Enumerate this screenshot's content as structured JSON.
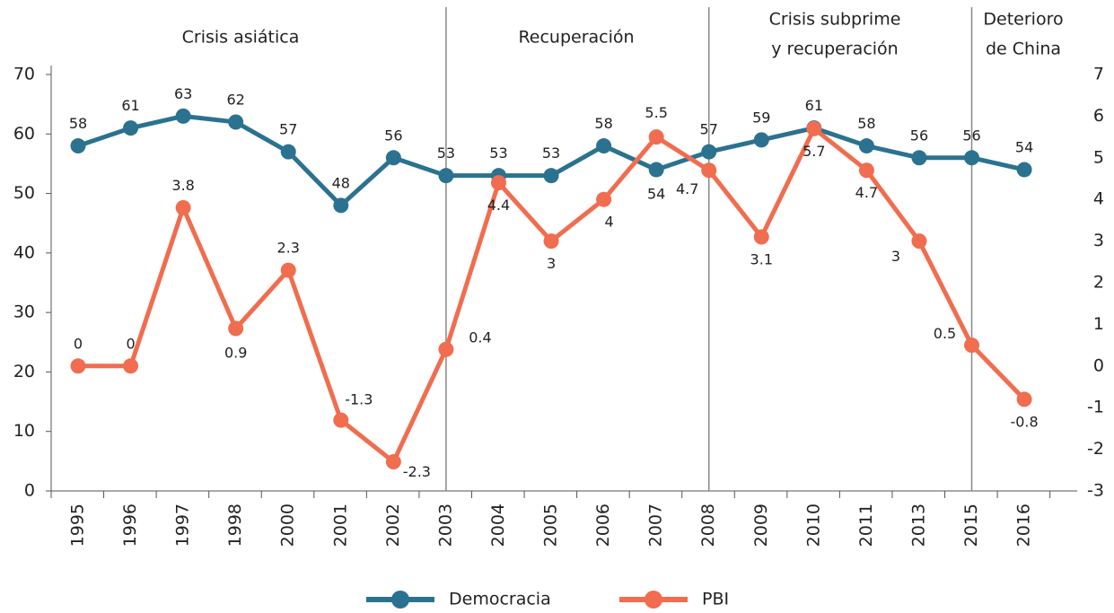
{
  "chart_data": {
    "type": "line",
    "categories": [
      "1995",
      "1996",
      "1997",
      "1998",
      "2000",
      "2001",
      "2002",
      "2003",
      "2004",
      "2005",
      "2006",
      "2007",
      "2008",
      "2009",
      "2010",
      "2011",
      "2013",
      "2015",
      "2016"
    ],
    "series": [
      {
        "name": "Democracia",
        "color": "#2b7290",
        "values": [
          58,
          61,
          63,
          62,
          57,
          48,
          56,
          53,
          53,
          53,
          58,
          54,
          57,
          59,
          61,
          58,
          56,
          56,
          54
        ]
      },
      {
        "name": "PBI",
        "color": "#f06d4f",
        "axis": "y2",
        "values": [
          0,
          0,
          3.8,
          0.9,
          2.3,
          -1.3,
          -2.3,
          0.4,
          4.4,
          3,
          4,
          5.5,
          4.7,
          3.1,
          5.7,
          4.7,
          3,
          0.5,
          -0.8
        ]
      }
    ],
    "ylim": [
      0,
      70
    ],
    "yticks": [
      0,
      10,
      20,
      30,
      40,
      50,
      60,
      70
    ],
    "y2lim": [
      -3,
      7
    ],
    "y2ticks": [
      -3,
      -2,
      -1,
      0,
      1,
      2,
      3,
      4,
      5,
      6,
      7
    ],
    "annotations": [
      {
        "lines": [
          "Crisis asiática"
        ]
      },
      {
        "lines": [
          "Recuperación"
        ]
      },
      {
        "lines": [
          "Crisis subprime",
          "y recuperación"
        ]
      },
      {
        "lines": [
          "Deterioro",
          "de China"
        ]
      }
    ],
    "legend": "bottom"
  }
}
